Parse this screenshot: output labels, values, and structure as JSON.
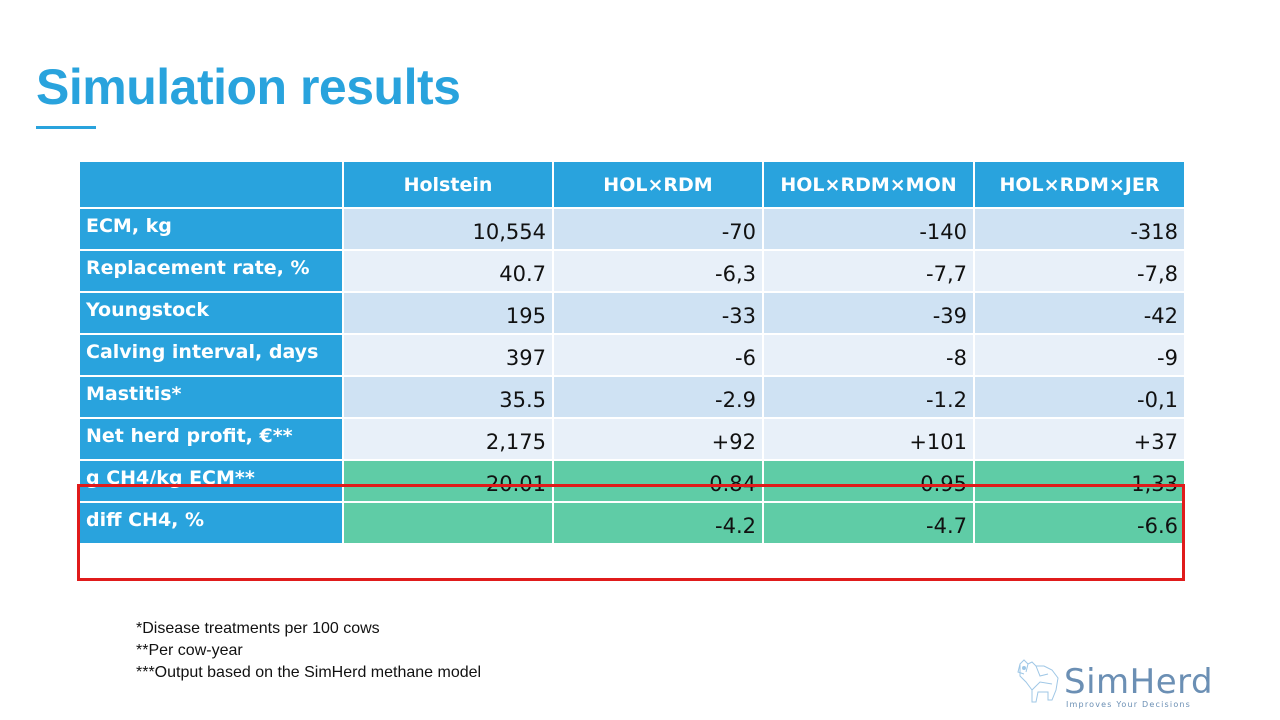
{
  "slide": {
    "title": "Simulation results"
  },
  "table": {
    "headers": [
      "",
      "Holstein",
      "HOL×RDM",
      "HOL×RDM×MON",
      "HOL×RDM×JER"
    ],
    "rows": [
      {
        "label": "ECM, kg",
        "values": [
          "10,554",
          "-70",
          "-140",
          "-318"
        ]
      },
      {
        "label": "Replacement rate, %",
        "values": [
          "40.7",
          "-6,3",
          "-7,7",
          "-7,8"
        ]
      },
      {
        "label": "Youngstock",
        "values": [
          "195",
          "-33",
          "-39",
          "-42"
        ]
      },
      {
        "label": "Calving interval, days",
        "values": [
          "397",
          "-6",
          "-8",
          "-9"
        ]
      },
      {
        "label": "Mastitis*",
        "values": [
          "35.5",
          "-2.9",
          "-1.2",
          "-0,1"
        ]
      },
      {
        "label": "Net herd profit, €**",
        "values": [
          "2,175",
          "+92",
          "+101",
          "+37"
        ]
      },
      {
        "label": "g CH4/kg ECM**",
        "values": [
          "20.01",
          "-0.84",
          "-0.95",
          "-1,33"
        ]
      },
      {
        "label": "diff CH4, %",
        "values": [
          "",
          "-4.2",
          "-4.7",
          "-6.6"
        ]
      }
    ]
  },
  "footnotes": [
    "*Disease treatments per 100 cows",
    "**Per cow-year",
    "***Output based on the SimHerd methane model"
  ],
  "logo": {
    "name": "SimHerd",
    "tagline": "Improves Your Decisions"
  },
  "colors": {
    "accent": "#29a3dd",
    "row_light_blue": "#cfe2f3",
    "row_pale_blue": "#e8f0f9",
    "highlight_green": "#5fcca6",
    "highlight_border": "#e01b1b"
  }
}
